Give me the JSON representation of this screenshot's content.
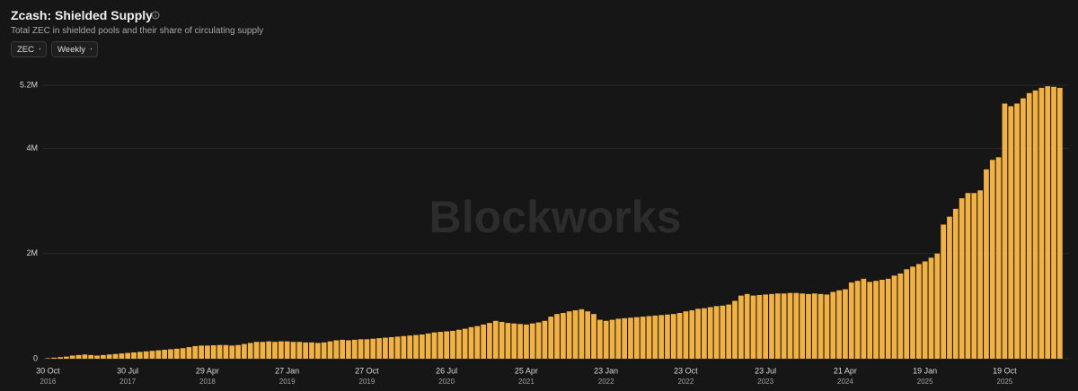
{
  "header": {
    "title": "Zcash: Shielded Supply",
    "subtitle": "Total ZEC in shielded pools and their share of circulating supply"
  },
  "controls": {
    "unit": "ZEC",
    "interval": "Weekly"
  },
  "watermark": "Blockworks",
  "chart_data": {
    "type": "bar",
    "color": "#f2b145",
    "grid": true,
    "ylim": [
      0,
      5200000
    ],
    "yticks": [
      0,
      {
        "value": 2000000,
        "label": "2M"
      },
      {
        "value": 4000000,
        "label": "4M"
      },
      {
        "value": 5200000,
        "label": "5.2M"
      }
    ],
    "categories": [
      [
        "30 Oct",
        "2016"
      ],
      null,
      null,
      null,
      null,
      null,
      null,
      null,
      null,
      null,
      null,
      null,
      null,
      [
        "30 Jul",
        "2017"
      ],
      null,
      null,
      null,
      null,
      null,
      null,
      null,
      null,
      null,
      null,
      null,
      null,
      [
        "29 Apr",
        "2018"
      ],
      null,
      null,
      null,
      null,
      null,
      null,
      null,
      null,
      null,
      null,
      null,
      null,
      [
        "27 Jan",
        "2019"
      ],
      null,
      null,
      null,
      null,
      null,
      null,
      null,
      null,
      null,
      null,
      null,
      null,
      [
        "27 Oct",
        "2019"
      ],
      null,
      null,
      null,
      null,
      null,
      null,
      null,
      null,
      null,
      null,
      null,
      null,
      [
        "26 Jul",
        "2020"
      ],
      null,
      null,
      null,
      null,
      null,
      null,
      null,
      null,
      null,
      null,
      null,
      null,
      [
        "25 Apr",
        "2021"
      ],
      null,
      null,
      null,
      null,
      null,
      null,
      null,
      null,
      null,
      null,
      null,
      null,
      [
        "23 Jan",
        "2022"
      ],
      null,
      null,
      null,
      null,
      null,
      null,
      null,
      null,
      null,
      null,
      null,
      null,
      [
        "23 Oct",
        "2022"
      ],
      null,
      null,
      null,
      null,
      null,
      null,
      null,
      null,
      null,
      null,
      null,
      null,
      [
        "23 Jul",
        "2023"
      ],
      null,
      null,
      null,
      null,
      null,
      null,
      null,
      null,
      null,
      null,
      null,
      null,
      [
        "21 Apr",
        "2024"
      ],
      null,
      null,
      null,
      null,
      null,
      null,
      null,
      null,
      null,
      null,
      null,
      null,
      [
        "19 Jan",
        "2025"
      ],
      null,
      null,
      null,
      null,
      null,
      null,
      null,
      null,
      null,
      null,
      null,
      null,
      [
        "19 Oct",
        "2025"
      ],
      null,
      null,
      null,
      null,
      null,
      null,
      null,
      null,
      null
    ],
    "values": [
      10000,
      20000,
      30000,
      40000,
      60000,
      70000,
      80000,
      70000,
      60000,
      70000,
      80000,
      90000,
      100000,
      110000,
      120000,
      130000,
      140000,
      150000,
      160000,
      170000,
      180000,
      190000,
      200000,
      220000,
      240000,
      250000,
      250000,
      255000,
      260000,
      260000,
      250000,
      260000,
      280000,
      300000,
      320000,
      320000,
      330000,
      320000,
      330000,
      330000,
      320000,
      320000,
      310000,
      310000,
      300000,
      310000,
      330000,
      350000,
      360000,
      350000,
      360000,
      370000,
      370000,
      380000,
      390000,
      400000,
      410000,
      420000,
      430000,
      440000,
      450000,
      460000,
      480000,
      500000,
      510000,
      520000,
      530000,
      550000,
      570000,
      600000,
      620000,
      650000,
      680000,
      720000,
      700000,
      680000,
      670000,
      660000,
      650000,
      670000,
      690000,
      720000,
      800000,
      850000,
      870000,
      900000,
      920000,
      940000,
      900000,
      850000,
      740000,
      720000,
      740000,
      760000,
      770000,
      780000,
      790000,
      800000,
      810000,
      820000,
      830000,
      840000,
      850000,
      870000,
      900000,
      920000,
      950000,
      960000,
      980000,
      1000000,
      1010000,
      1030000,
      1100000,
      1200000,
      1230000,
      1200000,
      1210000,
      1220000,
      1230000,
      1240000,
      1240000,
      1250000,
      1250000,
      1240000,
      1230000,
      1240000,
      1230000,
      1220000,
      1270000,
      1300000,
      1320000,
      1450000,
      1480000,
      1520000,
      1460000,
      1480000,
      1500000,
      1520000,
      1580000,
      1620000,
      1700000,
      1750000,
      1800000,
      1850000,
      1920000,
      2000000,
      2550000,
      2700000,
      2850000,
      3050000,
      3150000,
      3150000,
      3200000,
      3600000,
      3780000,
      3830000,
      4850000,
      4800000,
      4850000,
      4950000,
      5050000,
      5100000,
      5150000,
      5180000,
      5170000,
      5150000
    ]
  }
}
